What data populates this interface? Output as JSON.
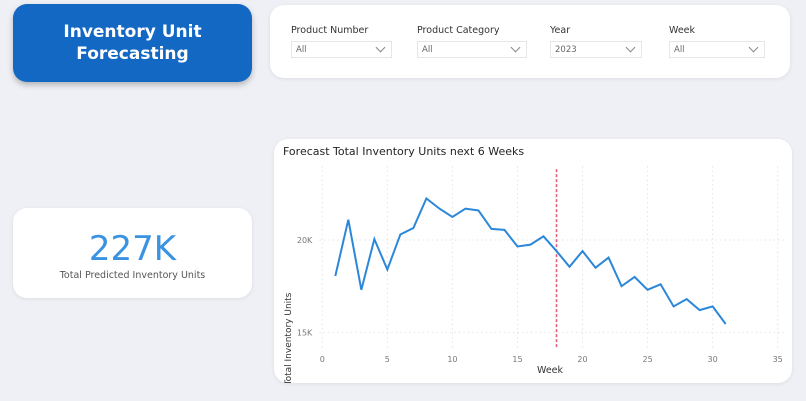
{
  "header": {
    "title": "Inventory Unit Forecasting"
  },
  "filters": [
    {
      "label": "Product Number",
      "value": "All"
    },
    {
      "label": "Product Category",
      "value": "All"
    },
    {
      "label": "Year",
      "value": "2023"
    },
    {
      "label": "Week",
      "value": "All"
    }
  ],
  "kpi": {
    "value": "227K",
    "caption": "Total Predicted Inventory Units"
  },
  "chart_data": {
    "type": "line",
    "title": "Forecast Total Inventory Units next 6 Weeks",
    "xlabel": "Week",
    "ylabel": "Total Inventory Units",
    "xlim": [
      0,
      35
    ],
    "ylim": [
      14000,
      24000
    ],
    "xticks": [
      0,
      5,
      10,
      15,
      20,
      25,
      30,
      35
    ],
    "yticks": [
      {
        "value": 15000,
        "label": "15K"
      },
      {
        "value": 20000,
        "label": "20K"
      }
    ],
    "grid": true,
    "line_color": "#2b87d9",
    "forecast_marker": {
      "x": 18,
      "color": "#e0607e"
    },
    "x": [
      1,
      2,
      3,
      4,
      5,
      6,
      7,
      8,
      9,
      10,
      11,
      12,
      13,
      14,
      15,
      16,
      17,
      18,
      19,
      20,
      21,
      22,
      23,
      24,
      25,
      26,
      27,
      28,
      29,
      30,
      31
    ],
    "values": [
      18050,
      21100,
      17300,
      20050,
      18400,
      20300,
      20650,
      22250,
      21700,
      21250,
      21700,
      21600,
      20600,
      20550,
      19650,
      19750,
      20200,
      19400,
      18550,
      19400,
      18500,
      19050,
      17500,
      18000,
      17300,
      17600,
      16400,
      16800,
      16200,
      16400,
      15450
    ]
  }
}
